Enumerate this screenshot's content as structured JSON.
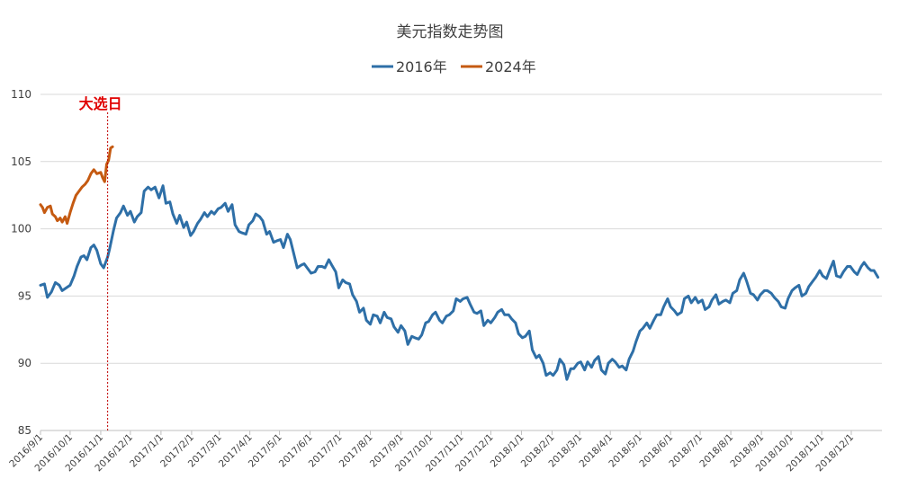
{
  "chart_data": {
    "type": "line",
    "title": "美元指数走势图",
    "ylim": [
      85,
      110
    ],
    "yticks": [
      "85",
      "90",
      "95",
      "100",
      "105",
      "110"
    ],
    "x_ticks": [
      "2016/9/1",
      "2016/10/1",
      "2016/11/1",
      "2016/12/1",
      "2017/1/1",
      "2017/2/1",
      "2017/3/1",
      "2017/4/1",
      "2017/5/1",
      "2017/6/1",
      "2017/7/1",
      "2017/8/1",
      "2017/9/1",
      "2017/10/1",
      "2017/11/1",
      "2017/12/1",
      "2018/1/1",
      "2018/2/1",
      "2018/3/1",
      "2018/4/1",
      "2018/5/1",
      "2018/6/1",
      "2018/7/1",
      "2018/8/1",
      "2018/9/1",
      "2018/10/1",
      "2018/11/1",
      "2018/12/1"
    ],
    "grid": true,
    "legend_position": "top",
    "annotation": {
      "label": "大选日",
      "x": "2016/11/8",
      "color": "#e00000"
    },
    "series": [
      {
        "name": "2016年",
        "color": "#2e6fa7",
        "points": [
          [
            "2016/9/1",
            95.8
          ],
          [
            "2016/9/5",
            95.9
          ],
          [
            "2016/9/8",
            94.9
          ],
          [
            "2016/9/12",
            95.3
          ],
          [
            "2016/9/16",
            96.0
          ],
          [
            "2016/9/20",
            95.8
          ],
          [
            "2016/9/23",
            95.4
          ],
          [
            "2016/9/27",
            95.6
          ],
          [
            "2016/10/1",
            95.8
          ],
          [
            "2016/10/5",
            96.5
          ],
          [
            "2016/10/8",
            97.2
          ],
          [
            "2016/10/12",
            97.9
          ],
          [
            "2016/10/15",
            98.0
          ],
          [
            "2016/10/18",
            97.7
          ],
          [
            "2016/10/22",
            98.6
          ],
          [
            "2016/10/25",
            98.8
          ],
          [
            "2016/10/28",
            98.4
          ],
          [
            "2016/11/1",
            97.4
          ],
          [
            "2016/11/4",
            97.1
          ],
          [
            "2016/11/8",
            97.9
          ],
          [
            "2016/11/10",
            98.5
          ],
          [
            "2016/11/14",
            99.9
          ],
          [
            "2016/11/17",
            100.8
          ],
          [
            "2016/11/21",
            101.2
          ],
          [
            "2016/11/24",
            101.7
          ],
          [
            "2016/11/28",
            101.0
          ],
          [
            "2016/12/1",
            101.3
          ],
          [
            "2016/12/5",
            100.5
          ],
          [
            "2016/12/8",
            100.9
          ],
          [
            "2016/12/12",
            101.2
          ],
          [
            "2016/12/15",
            102.8
          ],
          [
            "2016/12/19",
            103.1
          ],
          [
            "2016/12/22",
            102.9
          ],
          [
            "2016/12/26",
            103.1
          ],
          [
            "2016/12/30",
            102.3
          ],
          [
            "2017/1/3",
            103.2
          ],
          [
            "2017/1/6",
            101.9
          ],
          [
            "2017/1/10",
            102.0
          ],
          [
            "2017/1/13",
            101.1
          ],
          [
            "2017/1/17",
            100.4
          ],
          [
            "2017/1/20",
            101.0
          ],
          [
            "2017/1/24",
            100.1
          ],
          [
            "2017/1/27",
            100.5
          ],
          [
            "2017/1/31",
            99.5
          ],
          [
            "2017/2/3",
            99.8
          ],
          [
            "2017/2/7",
            100.4
          ],
          [
            "2017/2/10",
            100.7
          ],
          [
            "2017/2/14",
            101.2
          ],
          [
            "2017/2/17",
            100.9
          ],
          [
            "2017/2/21",
            101.3
          ],
          [
            "2017/2/24",
            101.1
          ],
          [
            "2017/2/28",
            101.5
          ],
          [
            "2017/3/3",
            101.6
          ],
          [
            "2017/3/7",
            101.9
          ],
          [
            "2017/3/10",
            101.3
          ],
          [
            "2017/3/14",
            101.8
          ],
          [
            "2017/3/17",
            100.3
          ],
          [
            "2017/3/21",
            99.8
          ],
          [
            "2017/3/24",
            99.7
          ],
          [
            "2017/3/28",
            99.6
          ],
          [
            "2017/3/31",
            100.3
          ],
          [
            "2017/4/4",
            100.6
          ],
          [
            "2017/4/7",
            101.1
          ],
          [
            "2017/4/11",
            100.9
          ],
          [
            "2017/4/14",
            100.6
          ],
          [
            "2017/4/18",
            99.6
          ],
          [
            "2017/4/21",
            99.8
          ],
          [
            "2017/4/25",
            99.0
          ],
          [
            "2017/4/28",
            99.1
          ],
          [
            "2017/5/2",
            99.2
          ],
          [
            "2017/5/5",
            98.6
          ],
          [
            "2017/5/9",
            99.6
          ],
          [
            "2017/5/12",
            99.2
          ],
          [
            "2017/5/16",
            98.0
          ],
          [
            "2017/5/19",
            97.1
          ],
          [
            "2017/5/23",
            97.3
          ],
          [
            "2017/5/26",
            97.4
          ],
          [
            "2017/5/30",
            97.0
          ],
          [
            "2017/6/2",
            96.7
          ],
          [
            "2017/6/6",
            96.8
          ],
          [
            "2017/6/9",
            97.2
          ],
          [
            "2017/6/13",
            97.2
          ],
          [
            "2017/6/16",
            97.1
          ],
          [
            "2017/6/20",
            97.7
          ],
          [
            "2017/6/23",
            97.3
          ],
          [
            "2017/6/27",
            96.8
          ],
          [
            "2017/6/30",
            95.6
          ],
          [
            "2017/7/4",
            96.2
          ],
          [
            "2017/7/7",
            96.0
          ],
          [
            "2017/7/11",
            95.9
          ],
          [
            "2017/7/14",
            95.1
          ],
          [
            "2017/7/18",
            94.6
          ],
          [
            "2017/7/21",
            93.8
          ],
          [
            "2017/7/25",
            94.1
          ],
          [
            "2017/7/28",
            93.2
          ],
          [
            "2017/8/1",
            92.9
          ],
          [
            "2017/8/4",
            93.6
          ],
          [
            "2017/8/8",
            93.5
          ],
          [
            "2017/8/11",
            93.0
          ],
          [
            "2017/8/15",
            93.8
          ],
          [
            "2017/8/18",
            93.4
          ],
          [
            "2017/8/22",
            93.3
          ],
          [
            "2017/8/25",
            92.7
          ],
          [
            "2017/8/29",
            92.3
          ],
          [
            "2017/9/1",
            92.8
          ],
          [
            "2017/9/5",
            92.4
          ],
          [
            "2017/9/8",
            91.4
          ],
          [
            "2017/9/12",
            92.0
          ],
          [
            "2017/9/15",
            91.9
          ],
          [
            "2017/9/19",
            91.8
          ],
          [
            "2017/9/22",
            92.1
          ],
          [
            "2017/9/26",
            93.0
          ],
          [
            "2017/9/29",
            93.1
          ],
          [
            "2017/10/3",
            93.6
          ],
          [
            "2017/10/6",
            93.8
          ],
          [
            "2017/10/10",
            93.2
          ],
          [
            "2017/10/13",
            93.0
          ],
          [
            "2017/10/17",
            93.5
          ],
          [
            "2017/10/20",
            93.6
          ],
          [
            "2017/10/24",
            93.9
          ],
          [
            "2017/10/27",
            94.8
          ],
          [
            "2017/10/31",
            94.6
          ],
          [
            "2017/11/3",
            94.8
          ],
          [
            "2017/11/7",
            94.9
          ],
          [
            "2017/11/10",
            94.4
          ],
          [
            "2017/11/14",
            93.8
          ],
          [
            "2017/11/17",
            93.7
          ],
          [
            "2017/11/21",
            93.9
          ],
          [
            "2017/11/24",
            92.8
          ],
          [
            "2017/11/28",
            93.2
          ],
          [
            "2017/12/1",
            93.0
          ],
          [
            "2017/12/5",
            93.4
          ],
          [
            "2017/12/8",
            93.8
          ],
          [
            "2017/12/12",
            94.0
          ],
          [
            "2017/12/15",
            93.6
          ],
          [
            "2017/12/19",
            93.6
          ],
          [
            "2017/12/22",
            93.3
          ],
          [
            "2017/12/26",
            93.0
          ],
          [
            "2017/12/29",
            92.2
          ],
          [
            "2018/1/2",
            91.9
          ],
          [
            "2018/1/5",
            92.0
          ],
          [
            "2018/1/9",
            92.4
          ],
          [
            "2018/1/12",
            91.0
          ],
          [
            "2018/1/16",
            90.4
          ],
          [
            "2018/1/19",
            90.6
          ],
          [
            "2018/1/23",
            90.0
          ],
          [
            "2018/1/26",
            89.1
          ],
          [
            "2018/1/30",
            89.3
          ],
          [
            "2018/2/2",
            89.1
          ],
          [
            "2018/2/6",
            89.5
          ],
          [
            "2018/2/9",
            90.3
          ],
          [
            "2018/2/13",
            89.9
          ],
          [
            "2018/2/16",
            88.8
          ],
          [
            "2018/2/20",
            89.6
          ],
          [
            "2018/2/23",
            89.6
          ],
          [
            "2018/2/27",
            90.0
          ],
          [
            "2018/3/2",
            90.1
          ],
          [
            "2018/3/6",
            89.5
          ],
          [
            "2018/3/9",
            90.1
          ],
          [
            "2018/3/13",
            89.7
          ],
          [
            "2018/3/16",
            90.2
          ],
          [
            "2018/3/20",
            90.5
          ],
          [
            "2018/3/23",
            89.5
          ],
          [
            "2018/3/27",
            89.2
          ],
          [
            "2018/3/30",
            90.0
          ],
          [
            "2018/4/3",
            90.3
          ],
          [
            "2018/4/6",
            90.1
          ],
          [
            "2018/4/10",
            89.7
          ],
          [
            "2018/4/13",
            89.8
          ],
          [
            "2018/4/17",
            89.5
          ],
          [
            "2018/4/20",
            90.3
          ],
          [
            "2018/4/24",
            90.9
          ],
          [
            "2018/4/27",
            91.6
          ],
          [
            "2018/5/1",
            92.4
          ],
          [
            "2018/5/4",
            92.6
          ],
          [
            "2018/5/8",
            93.0
          ],
          [
            "2018/5/11",
            92.6
          ],
          [
            "2018/5/15",
            93.2
          ],
          [
            "2018/5/18",
            93.6
          ],
          [
            "2018/5/22",
            93.6
          ],
          [
            "2018/5/25",
            94.2
          ],
          [
            "2018/5/29",
            94.8
          ],
          [
            "2018/6/1",
            94.2
          ],
          [
            "2018/6/5",
            93.9
          ],
          [
            "2018/6/8",
            93.6
          ],
          [
            "2018/6/12",
            93.8
          ],
          [
            "2018/6/15",
            94.8
          ],
          [
            "2018/6/19",
            95.0
          ],
          [
            "2018/6/22",
            94.5
          ],
          [
            "2018/6/26",
            94.9
          ],
          [
            "2018/6/29",
            94.5
          ],
          [
            "2018/7/3",
            94.7
          ],
          [
            "2018/7/6",
            94.0
          ],
          [
            "2018/7/10",
            94.2
          ],
          [
            "2018/7/13",
            94.7
          ],
          [
            "2018/7/17",
            95.1
          ],
          [
            "2018/7/20",
            94.4
          ],
          [
            "2018/7/24",
            94.6
          ],
          [
            "2018/7/27",
            94.7
          ],
          [
            "2018/7/31",
            94.5
          ],
          [
            "2018/8/3",
            95.2
          ],
          [
            "2018/8/7",
            95.4
          ],
          [
            "2018/8/10",
            96.2
          ],
          [
            "2018/8/14",
            96.7
          ],
          [
            "2018/8/17",
            96.1
          ],
          [
            "2018/8/21",
            95.2
          ],
          [
            "2018/8/24",
            95.1
          ],
          [
            "2018/8/28",
            94.7
          ],
          [
            "2018/8/31",
            95.1
          ],
          [
            "2018/9/4",
            95.4
          ],
          [
            "2018/9/7",
            95.4
          ],
          [
            "2018/9/11",
            95.2
          ],
          [
            "2018/9/14",
            94.9
          ],
          [
            "2018/9/18",
            94.6
          ],
          [
            "2018/9/21",
            94.2
          ],
          [
            "2018/9/25",
            94.1
          ],
          [
            "2018/9/28",
            94.8
          ],
          [
            "2018/10/2",
            95.4
          ],
          [
            "2018/10/5",
            95.6
          ],
          [
            "2018/10/9",
            95.8
          ],
          [
            "2018/10/12",
            95.0
          ],
          [
            "2018/10/16",
            95.2
          ],
          [
            "2018/10/19",
            95.7
          ],
          [
            "2018/10/23",
            96.1
          ],
          [
            "2018/10/26",
            96.4
          ],
          [
            "2018/10/30",
            96.9
          ],
          [
            "2018/11/2",
            96.5
          ],
          [
            "2018/11/6",
            96.3
          ],
          [
            "2018/11/9",
            96.9
          ],
          [
            "2018/11/13",
            97.6
          ],
          [
            "2018/11/16",
            96.5
          ],
          [
            "2018/11/20",
            96.4
          ],
          [
            "2018/11/23",
            96.8
          ],
          [
            "2018/11/27",
            97.2
          ],
          [
            "2018/11/30",
            97.2
          ],
          [
            "2018/12/4",
            96.8
          ],
          [
            "2018/12/7",
            96.6
          ],
          [
            "2018/12/11",
            97.2
          ],
          [
            "2018/12/14",
            97.5
          ],
          [
            "2018/12/18",
            97.1
          ],
          [
            "2018/12/21",
            96.9
          ],
          [
            "2018/12/24",
            96.9
          ],
          [
            "2018/12/28",
            96.4
          ]
        ]
      },
      {
        "name": "2024年",
        "color": "#c55a11",
        "points": [
          [
            "2016/9/1",
            101.8
          ],
          [
            "2016/9/3",
            101.6
          ],
          [
            "2016/9/5",
            101.2
          ],
          [
            "2016/9/8",
            101.6
          ],
          [
            "2016/9/11",
            101.7
          ],
          [
            "2016/9/13",
            101.1
          ],
          [
            "2016/9/16",
            100.9
          ],
          [
            "2016/9/18",
            100.6
          ],
          [
            "2016/9/21",
            100.8
          ],
          [
            "2016/9/23",
            100.5
          ],
          [
            "2016/9/26",
            100.9
          ],
          [
            "2016/9/28",
            100.4
          ],
          [
            "2016/10/1",
            101.2
          ],
          [
            "2016/10/4",
            101.9
          ],
          [
            "2016/10/7",
            102.5
          ],
          [
            "2016/10/10",
            102.8
          ],
          [
            "2016/10/13",
            103.1
          ],
          [
            "2016/10/16",
            103.3
          ],
          [
            "2016/10/19",
            103.6
          ],
          [
            "2016/10/22",
            104.1
          ],
          [
            "2016/10/25",
            104.4
          ],
          [
            "2016/10/28",
            104.1
          ],
          [
            "2016/11/1",
            104.2
          ],
          [
            "2016/11/3",
            103.8
          ],
          [
            "2016/11/5",
            103.5
          ],
          [
            "2016/11/7",
            104.8
          ],
          [
            "2016/11/9",
            105.1
          ],
          [
            "2016/11/11",
            106.0
          ],
          [
            "2016/11/13",
            106.1
          ]
        ]
      }
    ]
  }
}
